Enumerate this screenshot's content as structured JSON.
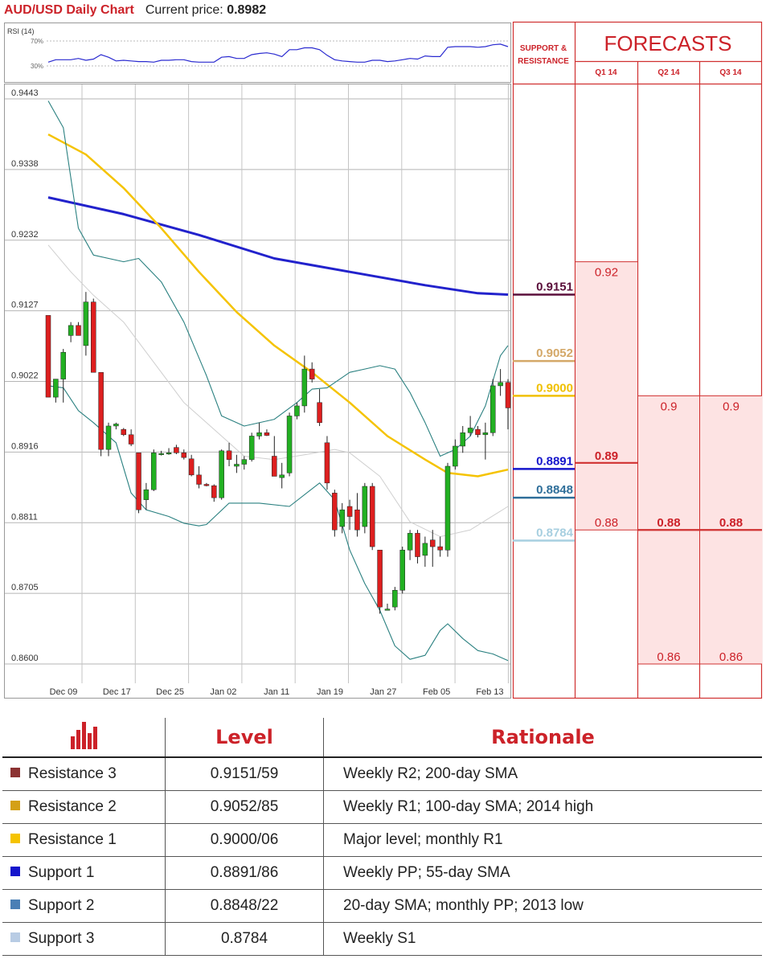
{
  "header": {
    "title": "AUD/USD Daily Chart",
    "price_label": "Current price:",
    "price_value": "0.8982"
  },
  "rsi": {
    "label": "RSI (14)",
    "levels": [
      "70%",
      "30%"
    ]
  },
  "forecast_panel": {
    "sr_title": [
      "SUPPORT &",
      "RESISTANCE"
    ],
    "title": "FORECASTS",
    "quarters": [
      "Q1 14",
      "Q2 14",
      "Q3 14"
    ]
  },
  "chart_data": {
    "type": "line",
    "title": "AUD/USD Daily Chart",
    "y_ticks": [
      "0.9443",
      "0.9338",
      "0.9232",
      "0.9127",
      "0.9022",
      "0.8916",
      "0.8811",
      "0.8705",
      "0.8600"
    ],
    "ylim": [
      0.86,
      0.9443
    ],
    "x_ticks": [
      "Dec 09",
      "Dec 17",
      "Dec 25",
      "Jan 02",
      "Jan 11",
      "Jan 19",
      "Jan 27",
      "Feb 05",
      "Feb 13"
    ],
    "grid": true,
    "candles": [
      [
        0.912,
        0.912,
        0.8998,
        0.8998
      ],
      [
        0.8998,
        0.9025,
        0.899,
        0.9025
      ],
      [
        0.9025,
        0.907,
        0.899,
        0.9065
      ],
      [
        0.909,
        0.911,
        0.908,
        0.9105
      ],
      [
        0.9105,
        0.911,
        0.909,
        0.909
      ],
      [
        0.9075,
        0.9155,
        0.906,
        0.914
      ],
      [
        0.914,
        0.9145,
        0.9035,
        0.9035
      ],
      [
        0.9035,
        0.9035,
        0.891,
        0.892
      ],
      [
        0.892,
        0.896,
        0.891,
        0.8955
      ],
      [
        0.8955,
        0.896,
        0.895,
        0.8958
      ],
      [
        0.895,
        0.8952,
        0.894,
        0.8942
      ],
      [
        0.8942,
        0.895,
        0.8925,
        0.8928
      ],
      [
        0.8915,
        0.8915,
        0.8825,
        0.883
      ],
      [
        0.8845,
        0.887,
        0.883,
        0.886
      ],
      [
        0.886,
        0.892,
        0.8858,
        0.8915
      ],
      [
        0.8913,
        0.8918,
        0.8911,
        0.8914
      ],
      [
        0.8914,
        0.8922,
        0.8912,
        0.8915
      ],
      [
        0.8923,
        0.8927,
        0.8913,
        0.8915
      ],
      [
        0.8915,
        0.892,
        0.8905,
        0.8908
      ],
      [
        0.8906,
        0.8912,
        0.888,
        0.8882
      ],
      [
        0.8882,
        0.8895,
        0.8862,
        0.8868
      ],
      [
        0.8868,
        0.887,
        0.8865,
        0.8866
      ],
      [
        0.8866,
        0.8868,
        0.8842,
        0.8848
      ],
      [
        0.8848,
        0.892,
        0.8845,
        0.8918
      ],
      [
        0.8918,
        0.893,
        0.8895,
        0.8905
      ],
      [
        0.8895,
        0.8912,
        0.8885,
        0.8898
      ],
      [
        0.8898,
        0.891,
        0.889,
        0.8905
      ],
      [
        0.8905,
        0.8945,
        0.8902,
        0.894
      ],
      [
        0.894,
        0.896,
        0.8935,
        0.8945
      ],
      [
        0.8945,
        0.895,
        0.894,
        0.8941
      ],
      [
        0.891,
        0.894,
        0.888,
        0.888
      ],
      [
        0.8878,
        0.89,
        0.8862,
        0.8882
      ],
      [
        0.8885,
        0.8975,
        0.888,
        0.897
      ],
      [
        0.897,
        0.899,
        0.8965,
        0.8985
      ],
      [
        0.8985,
        0.906,
        0.8975,
        0.904
      ],
      [
        0.904,
        0.905,
        0.902,
        0.9025
      ],
      [
        0.899,
        0.901,
        0.8955,
        0.896
      ],
      [
        0.893,
        0.894,
        0.886,
        0.887
      ],
      [
        0.8855,
        0.886,
        0.879,
        0.88
      ],
      [
        0.8805,
        0.884,
        0.8795,
        0.883
      ],
      [
        0.8835,
        0.8845,
        0.88,
        0.882
      ],
      [
        0.883,
        0.8855,
        0.879,
        0.88
      ],
      [
        0.8805,
        0.887,
        0.8795,
        0.8865
      ],
      [
        0.8865,
        0.887,
        0.877,
        0.8775
      ],
      [
        0.877,
        0.877,
        0.8675,
        0.8685
      ],
      [
        0.868,
        0.869,
        0.868,
        0.8682
      ],
      [
        0.8685,
        0.8715,
        0.868,
        0.871
      ],
      [
        0.871,
        0.8775,
        0.8705,
        0.877
      ],
      [
        0.877,
        0.88,
        0.8755,
        0.8795
      ],
      [
        0.8795,
        0.88,
        0.875,
        0.876
      ],
      [
        0.8762,
        0.879,
        0.8745,
        0.878
      ],
      [
        0.8785,
        0.88,
        0.8745,
        0.8775
      ],
      [
        0.8775,
        0.879,
        0.876,
        0.877
      ],
      [
        0.877,
        0.89,
        0.876,
        0.8895
      ],
      [
        0.8895,
        0.8935,
        0.889,
        0.8925
      ],
      [
        0.8925,
        0.8955,
        0.8915,
        0.8945
      ],
      [
        0.8945,
        0.897,
        0.894,
        0.8952
      ],
      [
        0.895,
        0.8955,
        0.8938,
        0.8942
      ],
      [
        0.8942,
        0.896,
        0.8905,
        0.8945
      ],
      [
        0.8945,
        0.9025,
        0.894,
        0.9015
      ],
      [
        0.9015,
        0.904,
        0.9,
        0.902
      ],
      [
        0.902,
        0.9025,
        0.895,
        0.8982
      ]
    ],
    "series": [
      {
        "type": "sma-200",
        "color": "#2222cc",
        "values": [
          [
            0,
            0.9296
          ],
          [
            10,
            0.9271
          ],
          [
            20,
            0.924
          ],
          [
            30,
            0.9205
          ],
          [
            40,
            0.9185
          ],
          [
            50,
            0.9165
          ],
          [
            57,
            0.9153
          ],
          [
            61,
            0.9151
          ]
        ]
      },
      {
        "type": "sma-100",
        "color": "#f5c300",
        "values": [
          [
            0,
            0.939
          ],
          [
            5,
            0.936
          ],
          [
            10,
            0.931
          ],
          [
            15,
            0.925
          ],
          [
            20,
            0.9185
          ],
          [
            25,
            0.9125
          ],
          [
            30,
            0.9075
          ],
          [
            35,
            0.9035
          ],
          [
            40,
            0.899
          ],
          [
            45,
            0.894
          ],
          [
            50,
            0.8905
          ],
          [
            53,
            0.8885
          ],
          [
            57,
            0.888
          ],
          [
            61,
            0.889
          ]
        ]
      },
      {
        "type": "bollinger-upper",
        "color": "#2a8080",
        "values": [
          [
            0,
            0.944
          ],
          [
            2,
            0.94
          ],
          [
            4,
            0.925
          ],
          [
            6,
            0.921
          ],
          [
            10,
            0.92
          ],
          [
            12,
            0.9205
          ],
          [
            15,
            0.917
          ],
          [
            18,
            0.911
          ],
          [
            21,
            0.903
          ],
          [
            23,
            0.897
          ],
          [
            26,
            0.8955
          ],
          [
            30,
            0.8965
          ],
          [
            33,
            0.899
          ],
          [
            35,
            0.901
          ],
          [
            37,
            0.9012
          ],
          [
            40,
            0.9035
          ],
          [
            42,
            0.904
          ],
          [
            44,
            0.9045
          ],
          [
            46,
            0.904
          ],
          [
            48,
            0.9005
          ],
          [
            50,
            0.896
          ],
          [
            52,
            0.891
          ],
          [
            54,
            0.892
          ],
          [
            56,
            0.894
          ],
          [
            58,
            0.8985
          ],
          [
            60,
            0.906
          ],
          [
            61,
            0.9075
          ]
        ]
      },
      {
        "type": "bollinger-lower",
        "color": "#2a8080",
        "values": [
          [
            0,
            0.9015
          ],
          [
            2,
            0.9012
          ],
          [
            4,
            0.8978
          ],
          [
            6,
            0.896
          ],
          [
            9,
            0.893
          ],
          [
            11,
            0.8855
          ],
          [
            13,
            0.883
          ],
          [
            16,
            0.882
          ],
          [
            18,
            0.881
          ],
          [
            20,
            0.8806
          ],
          [
            21,
            0.8808
          ],
          [
            24,
            0.884
          ],
          [
            28,
            0.884
          ],
          [
            32,
            0.8835
          ],
          [
            36,
            0.887
          ],
          [
            38,
            0.8845
          ],
          [
            40,
            0.877
          ],
          [
            42,
            0.872
          ],
          [
            44,
            0.868
          ],
          [
            46,
            0.8627
          ],
          [
            48,
            0.8607
          ],
          [
            50,
            0.8613
          ],
          [
            52,
            0.865
          ],
          [
            53,
            0.866
          ],
          [
            55,
            0.8638
          ],
          [
            57,
            0.862
          ],
          [
            59,
            0.8615
          ],
          [
            61,
            0.8605
          ]
        ]
      },
      {
        "type": "sma-20",
        "color": "#cfcfcf",
        "values": [
          [
            0,
            0.9225
          ],
          [
            3,
            0.9185
          ],
          [
            6,
            0.915
          ],
          [
            10,
            0.911
          ],
          [
            14,
            0.905
          ],
          [
            18,
            0.899
          ],
          [
            22,
            0.895
          ],
          [
            26,
            0.891
          ],
          [
            30,
            0.8905
          ],
          [
            34,
            0.8912
          ],
          [
            38,
            0.892
          ],
          [
            40,
            0.8915
          ],
          [
            44,
            0.888
          ],
          [
            48,
            0.8812
          ],
          [
            52,
            0.879
          ],
          [
            56,
            0.88
          ],
          [
            61,
            0.8835
          ]
        ]
      }
    ],
    "rsi_values": [
      36,
      40,
      40,
      40,
      42,
      39,
      41,
      48,
      44,
      38,
      39,
      38,
      37,
      37,
      36,
      39,
      39,
      40,
      40,
      37,
      36,
      36,
      36,
      44,
      45,
      42,
      42,
      48,
      50,
      51,
      49,
      45,
      56,
      56,
      59,
      59,
      56,
      47,
      40,
      38,
      37,
      36,
      36,
      39,
      39,
      37,
      38,
      40,
      42,
      41,
      46,
      45,
      45,
      60,
      61,
      61,
      61,
      60,
      61,
      64,
      65,
      61
    ],
    "levels": [
      {
        "value": 0.9151,
        "label": "0.9151",
        "color": "#5a0f3a"
      },
      {
        "value": 0.9052,
        "label": "0.9052",
        "color": "#d4a868"
      },
      {
        "value": 0.9,
        "label": "0.9000",
        "color": "#f0c000"
      },
      {
        "value": 0.8891,
        "label": "0.8891",
        "color": "#1515cc"
      },
      {
        "value": 0.8848,
        "label": "0.8848",
        "color": "#2f6f9a"
      },
      {
        "value": 0.8784,
        "label": "0.8784",
        "color": "#a7cfe0"
      }
    ],
    "forecasts": {
      "q1": [
        {
          "value": 0.92,
          "label": "0.92"
        },
        {
          "value": 0.89,
          "label": "0.89",
          "median": true
        },
        {
          "value": 0.88,
          "label": "0.88"
        }
      ],
      "q2": [
        {
          "value": 0.9,
          "label": "0.9"
        },
        {
          "value": 0.88,
          "label": "0.88",
          "median": true
        },
        {
          "value": 0.86,
          "label": "0.86"
        }
      ],
      "q3": [
        {
          "value": 0.9,
          "label": "0.9"
        },
        {
          "value": 0.88,
          "label": "0.88",
          "median": true
        },
        {
          "value": 0.86,
          "label": "0.86"
        }
      ]
    }
  },
  "table": {
    "headers": {
      "level": "Level",
      "rationale": "Rationale"
    },
    "rows": [
      {
        "name": "Resistance 3",
        "color": "#8b3232",
        "level": "0.9151/59",
        "rationale": "Weekly R2; 200-day SMA"
      },
      {
        "name": "Resistance 2",
        "color": "#d4a017",
        "level": "0.9052/85",
        "rationale": "Weekly R1; 100-day SMA; 2014 high"
      },
      {
        "name": "Resistance 1",
        "color": "#f5c300",
        "level": "0.9000/06",
        "rationale": "Major level; monthly R1"
      },
      {
        "name": "Support 1",
        "color": "#1515cc",
        "level": "0.8891/86",
        "rationale": "Weekly PP; 55-day SMA"
      },
      {
        "name": "Support 2",
        "color": "#4a7fb5",
        "level": "0.8848/22",
        "rationale": "20-day SMA; monthly PP; 2013 low"
      },
      {
        "name": "Support 3",
        "color": "#b8cce4",
        "level": "0.8784",
        "rationale": "Weekly S1"
      }
    ]
  }
}
